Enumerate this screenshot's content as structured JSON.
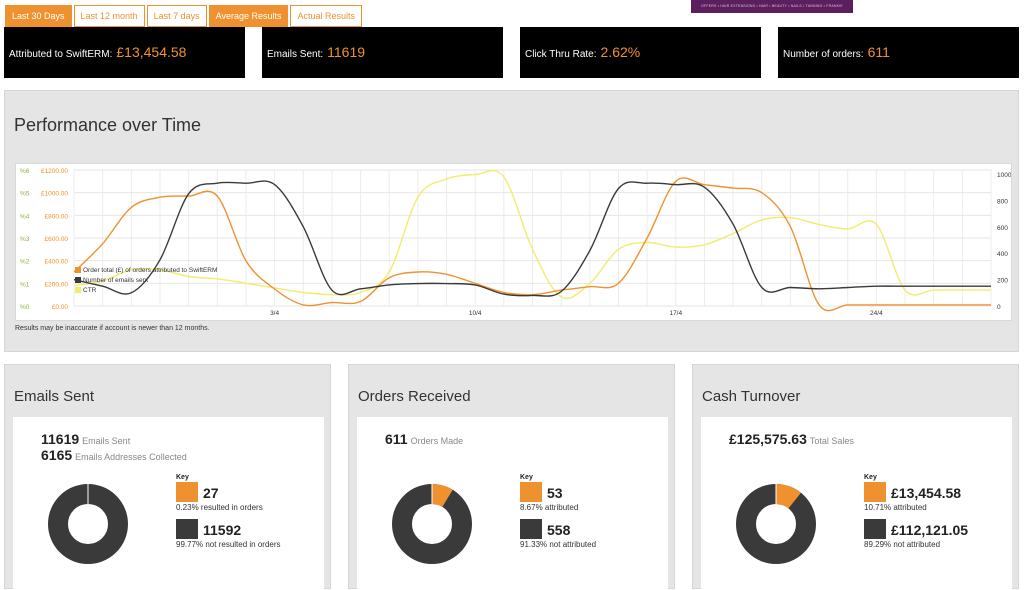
{
  "tabs": [
    "Last 30 Days",
    "Last 12 month",
    "Last 7 days",
    "Average Results",
    "Actual Results"
  ],
  "banner_text": "OFFERS • HAIR EXTENSIONS • HAIR • BEAUTY • NAILS • TANNING • FRANKIE",
  "colors": {
    "accent": "#f0912f",
    "dark": "#3a3a3a",
    "ctr": "#f2ec6e"
  },
  "stats": [
    {
      "label": "Attributed to SwiftERM:",
      "value": "£13,454.58"
    },
    {
      "label": "Emails Sent:",
      "value": "11619"
    },
    {
      "label": "Click Thru Rate:",
      "value": "2.62%"
    },
    {
      "label": "Number of orders:",
      "value": "611"
    }
  ],
  "performance": {
    "title": "Performance over Time",
    "note": "Results may be inaccurate if account is newer than 12 months."
  },
  "chart_data": {
    "type": "line",
    "x": [
      "27/3",
      "28/3",
      "29/3",
      "30/3",
      "31/3",
      "1/4",
      "2/4",
      "3/4",
      "4/4",
      "5/4",
      "6/4",
      "7/4",
      "8/4",
      "9/4",
      "10/4",
      "11/4",
      "12/4",
      "13/4",
      "14/4",
      "15/4",
      "16/4",
      "17/4",
      "18/4",
      "19/4",
      "20/4",
      "21/4",
      "22/4",
      "23/4",
      "24/4",
      "25/4",
      "26/4",
      "27/4",
      "28/4"
    ],
    "x_tick_labels": [
      "3/4",
      "10/4",
      "17/4",
      "24/4"
    ],
    "y_left_percent_ticks": [
      "%0",
      "%1",
      "%2",
      "%3",
      "%4",
      "%5",
      "%6"
    ],
    "y_left_money_ticks": [
      "£0.00",
      "£200.00",
      "£400.00",
      "£600.00",
      "£800.00",
      "£1000.00",
      "£1200.00"
    ],
    "y_right_ticks": [
      "0",
      "200",
      "400",
      "600",
      "800",
      "1000"
    ],
    "ylim_left": [
      0,
      1200
    ],
    "ylim_right": [
      0,
      1000
    ],
    "legend": "bottom-left",
    "series": [
      {
        "name": "Order total (£) of orders attributed to SwiftERM",
        "axis": "left-money",
        "color": "#f0912f",
        "values": [
          300,
          550,
          870,
          960,
          970,
          970,
          400,
          150,
          10,
          30,
          40,
          250,
          300,
          280,
          200,
          120,
          100,
          140,
          170,
          200,
          600,
          1100,
          1070,
          1040,
          1000,
          700,
          10,
          10,
          10,
          10,
          10,
          10,
          10
        ]
      },
      {
        "name": "Number of emails sent",
        "axis": "right",
        "color": "#3a3a3a",
        "values": [
          200,
          150,
          100,
          350,
          850,
          930,
          930,
          920,
          600,
          120,
          130,
          160,
          170,
          170,
          160,
          90,
          80,
          110,
          420,
          890,
          930,
          920,
          900,
          620,
          140,
          140,
          130,
          140,
          150,
          150,
          150,
          150,
          150
        ]
      },
      {
        "name": "CTR",
        "axis": "left-percent",
        "color": "#f2ec6e",
        "values": [
          0.9,
          1.1,
          1.6,
          1.6,
          1.3,
          1.2,
          1.0,
          0.8,
          0.6,
          0.5,
          0.6,
          1.5,
          4.8,
          5.6,
          5.8,
          5.7,
          2.5,
          0.4,
          1.0,
          2.5,
          2.8,
          2.6,
          2.7,
          3.2,
          3.8,
          3.9,
          3.6,
          3.4,
          3.6,
          0.7,
          0.7,
          0.7,
          0.7
        ]
      }
    ]
  },
  "cards": [
    {
      "title": "Emails Sent",
      "line1": {
        "value": "11619",
        "label": "Emails Sent"
      },
      "line2": {
        "value": "6165",
        "label": "Emails Addresses Collected"
      },
      "key": "Key",
      "items": [
        {
          "value": "27",
          "desc": "0.23% resulted in orders",
          "fraction": 0.0023
        },
        {
          "value": "11592",
          "desc": "99.77% not resulted in orders",
          "fraction": 0.9977
        }
      ]
    },
    {
      "title": "Orders Received",
      "line1": {
        "value": "611",
        "label": "Orders Made"
      },
      "key": "Key",
      "items": [
        {
          "value": "53",
          "desc": "8.67% attributed",
          "fraction": 0.0867
        },
        {
          "value": "558",
          "desc": "91.33% not attributed",
          "fraction": 0.9133
        }
      ]
    },
    {
      "title": "Cash Turnover",
      "line1": {
        "value": "£125,575.63",
        "label": "Total Sales"
      },
      "key": "Key",
      "items": [
        {
          "value": "£13,454.58",
          "desc": "10.71% attributed",
          "fraction": 0.1071
        },
        {
          "value": "£112,121.05",
          "desc": "89.29% not attributed",
          "fraction": 0.8929
        }
      ]
    }
  ]
}
